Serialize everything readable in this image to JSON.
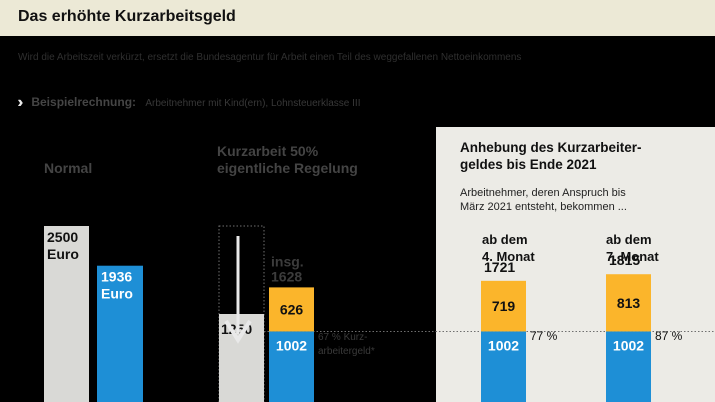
{
  "header": {
    "title": "Das erhöhte Kurzarbeitsgeld"
  },
  "subtitle": "Wird die Arbeitszeit verkürzt, ersetzt die Bundesagentur für Arbeit einen Teil des weggefallenen Nettoeinkommens",
  "example": {
    "bold": "Beispielrechnung:",
    "rest": "Arbeitnehmer mit Kind(ern), Lohnsteuerklasse III"
  },
  "columns": {
    "normal": "Normal",
    "kurzarbeit_line1": "Kurzarbeit 50%",
    "kurzarbeit_line2": "eigentliche Regelung"
  },
  "panel": {
    "title_line1": "Anhebung des Kurzarbeiter-",
    "title_line2": "geldes bis Ende 2021",
    "note_line1": "Arbeitnehmer, deren Anspruch bis",
    "note_line2": "März 2021 entsteht, bekommen ...",
    "month4_line1": "ab dem",
    "month4_line2": "4. Monat",
    "month7_line1": "ab dem",
    "month7_line2": "7. Monat"
  },
  "colors": {
    "gross": "#d9d9d6",
    "net": "#1e8fd6",
    "kug": "#fbb52b",
    "panel": "#ecebe6"
  },
  "chart_data": {
    "type": "bar",
    "unit": "Euro",
    "bars": [
      {
        "name": "brutto-normal",
        "value": 2500,
        "label_line1": "2500",
        "label_line2": "Euro"
      },
      {
        "name": "netto-normal",
        "value": 1936,
        "label_line1": "1936",
        "label_line2": "Euro"
      },
      {
        "name": "brutto-kurzarbeit",
        "value": 1250,
        "label_line1": "1250"
      },
      {
        "name": "kurzarbeit-50",
        "total": 1628,
        "total_prefix": "insg.",
        "segments": [
          {
            "value": 1002,
            "label": "1002"
          },
          {
            "value": 626,
            "label": "626"
          }
        ],
        "rate_line1": "67 % Kurz-",
        "rate_line2": "arbeitergeld*"
      },
      {
        "name": "ab-4-monat",
        "total": 1721,
        "segments": [
          {
            "value": 1002,
            "label": "1002"
          },
          {
            "value": 719,
            "label": "719"
          }
        ],
        "rate": "77 %"
      },
      {
        "name": "ab-7-monat",
        "total": 1815,
        "segments": [
          {
            "value": 1002,
            "label": "1002"
          },
          {
            "value": 813,
            "label": "813"
          }
        ],
        "rate": "87 %"
      }
    ]
  }
}
